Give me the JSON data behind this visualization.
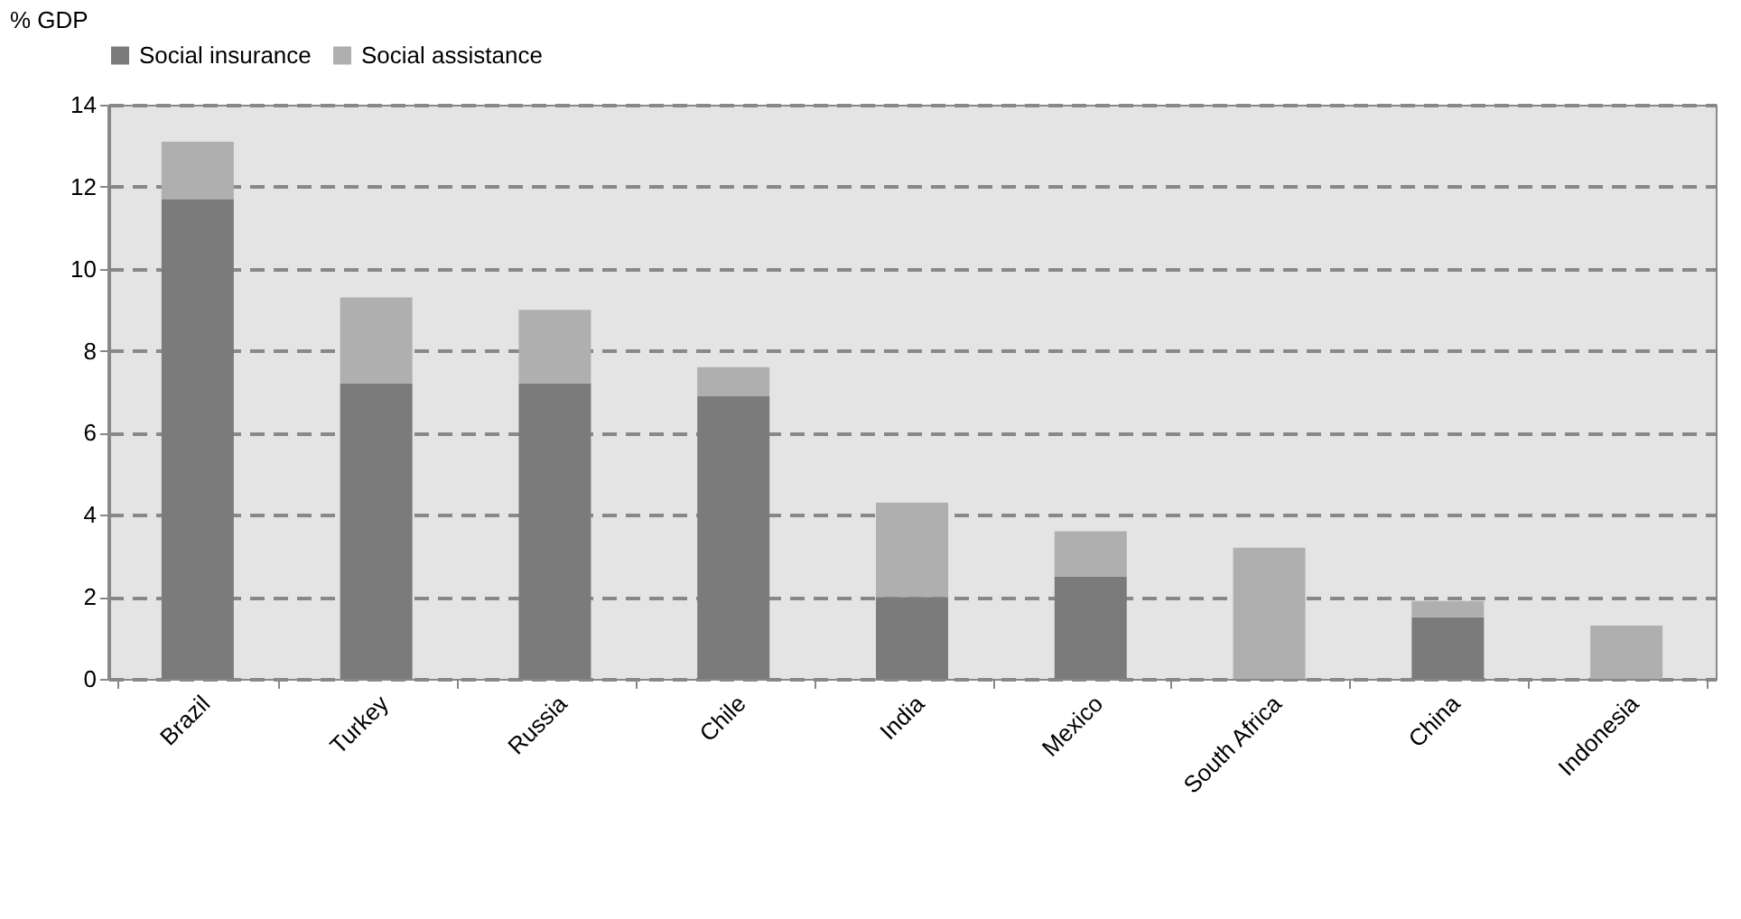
{
  "chart_data": {
    "type": "bar",
    "stacked": true,
    "ylabel": "% GDP",
    "categories": [
      "Brazil",
      "Turkey",
      "Russia",
      "Chile",
      "India",
      "Mexico",
      "South Africa",
      "China",
      "Indonesia"
    ],
    "series": [
      {
        "name": "Social insurance",
        "color": "#7b7b7b",
        "values": [
          11.7,
          7.2,
          7.2,
          6.9,
          2.0,
          2.5,
          null,
          1.5,
          null
        ]
      },
      {
        "name": "Social assistance",
        "color": "#afafaf",
        "values": [
          1.4,
          2.1,
          1.8,
          0.7,
          2.3,
          1.1,
          3.2,
          0.4,
          1.3
        ]
      }
    ],
    "ylim": [
      0,
      14
    ],
    "yticks": [
      0,
      2,
      4,
      6,
      8,
      10,
      12,
      14
    ],
    "grid": "y",
    "legend": "top"
  }
}
